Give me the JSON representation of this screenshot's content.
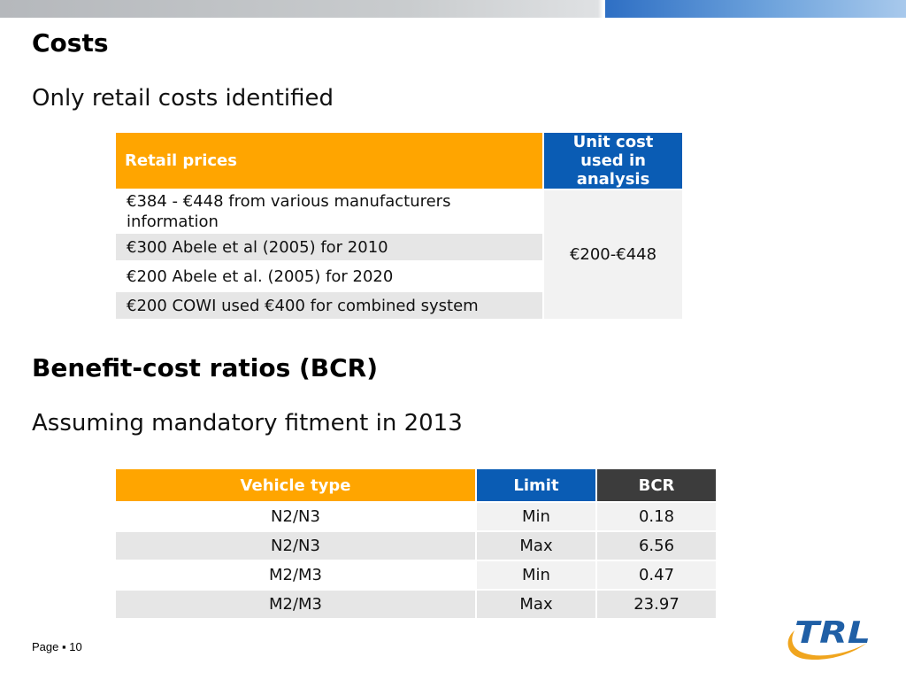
{
  "slide": {
    "costs_title": "Costs",
    "costs_subtitle": "Only retail costs identified",
    "bcr_title": "Benefit-cost ratios (BCR)",
    "bcr_subtitle": "Assuming mandatory fitment in 2013",
    "footer": {
      "page_label": "Page",
      "bullet": "▪",
      "page_number": "10"
    },
    "logo_text": "TRL"
  },
  "costs_table": {
    "headers": {
      "retail": "Retail prices",
      "unit_cost": "Unit cost used in analysis"
    },
    "rows": [
      "€384 - €448 from various manufacturers information",
      "€300 Abele et al (2005) for 2010",
      "€200 Abele et al. (2005) for 2020",
      "€200 COWI used €400 for combined system"
    ],
    "unit_cost_value": "€200-€448"
  },
  "bcr_table": {
    "headers": {
      "vehicle": "Vehicle type",
      "limit": "Limit",
      "bcr": "BCR"
    },
    "rows": [
      {
        "vehicle": "N2/N3",
        "limit": "Min",
        "bcr": "0.18"
      },
      {
        "vehicle": "N2/N3",
        "limit": "Max",
        "bcr": "6.56"
      },
      {
        "vehicle": "M2/M3",
        "limit": "Min",
        "bcr": "0.47"
      },
      {
        "vehicle": "M2/M3",
        "limit": "Max",
        "bcr": "23.97"
      }
    ]
  },
  "colors": {
    "orange_header": "#ffa500",
    "blue_header": "#0a5cb4",
    "dark_header": "#3c3c3c",
    "logo_blue": "#1f5fa6",
    "logo_orange": "#f0a51e"
  }
}
